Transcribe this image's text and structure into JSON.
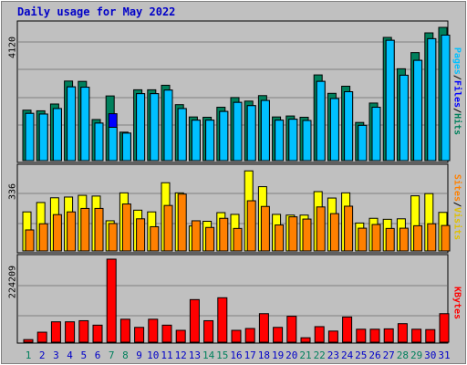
{
  "title": "Daily usage for May 2022",
  "colors": {
    "background": "#c0c0c0",
    "hits": "#00805c",
    "files": "#00c0ff",
    "pages": "#00c0ff",
    "visits": "#ffff00",
    "sites": "#ff8000",
    "kbytes": "#ff0000",
    "title": "#0000c8",
    "weekend_day": "#00805c",
    "highlight": "#0000ff"
  },
  "panels": {
    "top": {
      "max_label": "4120",
      "legend": [
        {
          "text": "Pages",
          "color": "#00c0ff"
        },
        {
          "text": "/",
          "color": "#000000"
        },
        {
          "text": "Files",
          "color": "#0000ff"
        },
        {
          "text": "/",
          "color": "#000000"
        },
        {
          "text": "Hits",
          "color": "#00805c"
        }
      ]
    },
    "mid": {
      "max_label": "336",
      "legend": [
        {
          "text": "Sites",
          "color": "#ff8000"
        },
        {
          "text": "/",
          "color": "#000000"
        },
        {
          "text": "Visits",
          "color": "#ffff00"
        }
      ]
    },
    "bottom": {
      "max_label": "224209",
      "legend": [
        {
          "text": "KBytes",
          "color": "#ff0000"
        }
      ]
    }
  },
  "chart_data": {
    "type": "bar",
    "title": "Daily usage for May 2022",
    "categories": [
      "1",
      "2",
      "3",
      "4",
      "5",
      "6",
      "7",
      "8",
      "9",
      "10",
      "11",
      "12",
      "13",
      "14",
      "15",
      "16",
      "17",
      "18",
      "19",
      "20",
      "21",
      "22",
      "23",
      "24",
      "25",
      "26",
      "27",
      "28",
      "29",
      "30",
      "31"
    ],
    "weekend_days": [
      "1",
      "7",
      "8",
      "14",
      "15",
      "21",
      "22",
      "28",
      "29"
    ],
    "hits_files": {
      "ylim": [
        0,
        4120
      ],
      "series": [
        {
          "name": "Hits",
          "values": [
            1560,
            1540,
            1750,
            2460,
            2450,
            1270,
            2000,
            880,
            2190,
            2190,
            2330,
            1730,
            1350,
            1340,
            1650,
            1950,
            1840,
            2010,
            1350,
            1380,
            1340,
            2650,
            2080,
            2300,
            1180,
            1780,
            3810,
            2840,
            3340,
            3950,
            4120
          ]
        },
        {
          "name": "Files",
          "values": [
            1460,
            1440,
            1610,
            2280,
            2270,
            1160,
            1450,
            850,
            2070,
            2070,
            2180,
            1610,
            1250,
            1250,
            1520,
            1800,
            1700,
            1860,
            1250,
            1280,
            1240,
            2450,
            1920,
            2130,
            1090,
            1650,
            3720,
            2640,
            3100,
            3770,
            3880
          ]
        },
        {
          "name": "Pages",
          "values": [
            1460,
            1440,
            1610,
            2280,
            2270,
            1160,
            1030,
            850,
            2070,
            2070,
            2180,
            1610,
            1250,
            1250,
            1520,
            1800,
            1700,
            1860,
            1250,
            1280,
            1240,
            2450,
            1920,
            2130,
            1090,
            1650,
            3720,
            2640,
            3100,
            3770,
            3880
          ]
        }
      ]
    },
    "visits_sites": {
      "ylim": [
        0,
        336
      ],
      "series": [
        {
          "name": "Visits",
          "values": [
            158,
            196,
            215,
            218,
            225,
            222,
            122,
            235,
            165,
            158,
            276,
            235,
            101,
            120,
            155,
            148,
            324,
            260,
            148,
            145,
            145,
            240,
            214,
            235,
            113,
            132,
            128,
            130,
            223,
            232,
            156
          ]
        },
        {
          "name": "Sites",
          "values": [
            85,
            110,
            147,
            158,
            172,
            172,
            111,
            190,
            130,
            98,
            184,
            230,
            122,
            95,
            132,
            91,
            203,
            180,
            105,
            138,
            129,
            178,
            151,
            181,
            92,
            107,
            91,
            92,
            102,
            110,
            103
          ]
        }
      ]
    },
    "kbytes": {
      "ylim": [
        0,
        224209
      ],
      "series": [
        {
          "name": "KBytes",
          "values": [
            7000,
            27000,
            55000,
            55000,
            58000,
            46000,
            224209,
            62000,
            40000,
            62000,
            46000,
            32000,
            115000,
            58000,
            120000,
            32000,
            37000,
            77000,
            40000,
            70000,
            12000,
            42000,
            30000,
            68000,
            35000,
            35000,
            36000,
            50000,
            35000,
            34000,
            77000
          ]
        }
      ]
    }
  }
}
